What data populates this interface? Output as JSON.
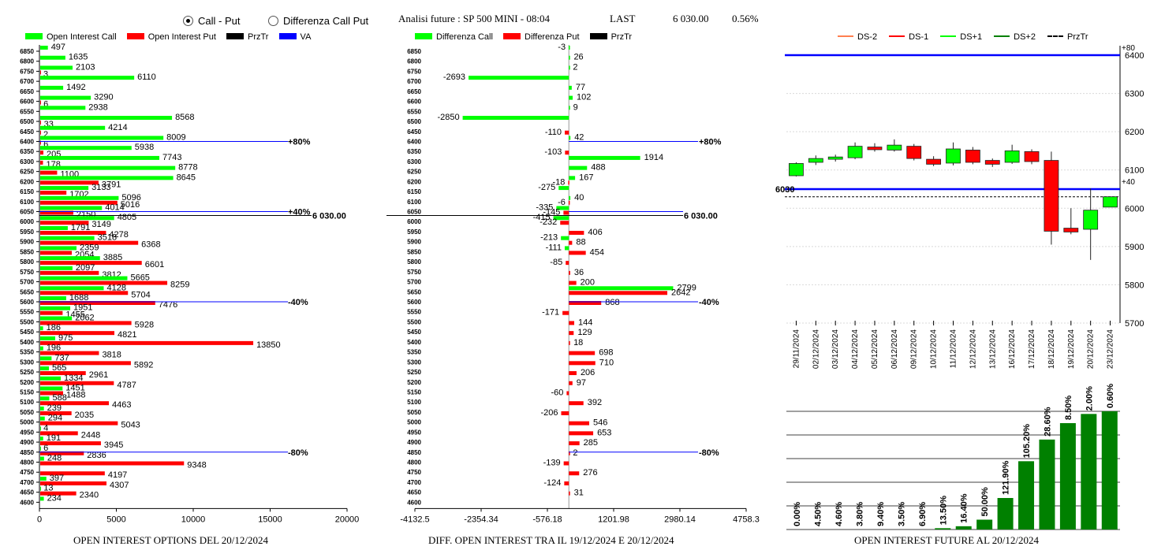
{
  "header": {
    "mode_options": [
      {
        "label": "Call - Put",
        "selected": true
      },
      {
        "label": "Differenza Call Put",
        "selected": false
      }
    ],
    "title": "Analisi future : SP 500 MINI - 08:04",
    "last_label": "LAST",
    "last_value": "6 030.00",
    "change": "0.56%"
  },
  "colors": {
    "call": "#00ff00",
    "put": "#ff0000",
    "price": "#000000",
    "va": "#0000ff",
    "dark_green": "#008000"
  },
  "strikes": [
    6850,
    6800,
    6750,
    6700,
    6650,
    6600,
    6550,
    6500,
    6450,
    6400,
    6350,
    6300,
    6250,
    6200,
    6150,
    6100,
    6050,
    6000,
    5950,
    5900,
    5850,
    5800,
    5750,
    5700,
    5650,
    5600,
    5550,
    5500,
    5450,
    5400,
    5350,
    5300,
    5250,
    5200,
    5150,
    5100,
    5050,
    5000,
    4950,
    4900,
    4850,
    4800,
    4750,
    4700,
    4650,
    4600
  ],
  "chart_data": [
    {
      "type": "bar",
      "title": "OPEN INTEREST OPTIONS DEL 20/12/2024",
      "legend": [
        "Open Interest Call",
        "Open Interest Put",
        "PrzTr",
        "VA"
      ],
      "xticks": [
        "0",
        "5000",
        "10000",
        "15000",
        "20000"
      ],
      "xlim": [
        0,
        20000
      ],
      "price": "6 030.00",
      "levels": [
        {
          "strike": 6400,
          "label": "+80%"
        },
        {
          "strike": 6050,
          "label": "+40%"
        },
        {
          "strike": 5600,
          "label": "-40%"
        },
        {
          "strike": 4850,
          "label": "-80%"
        }
      ],
      "series": [
        {
          "name": "Open Interest Call",
          "values": [
            497,
            1635,
            2103,
            6110,
            1492,
            3290,
            2938,
            8568,
            4214,
            8009,
            5938,
            7743,
            8778,
            8645,
            3133,
            5096,
            4014,
            4805,
            1791,
            3518,
            2359,
            3885,
            2097,
            5665,
            4128,
            1688,
            1951,
            2062,
            186,
            975,
            196,
            737,
            565,
            1334,
            1451,
            588,
            239,
            294,
            4,
            191,
            6,
            248,
            0,
            397,
            13,
            234
          ]
        },
        {
          "name": "Open Interest Put",
          "values": [
            0,
            0,
            3,
            0,
            0,
            6,
            0,
            33,
            2,
            6,
            205,
            178,
            1100,
            3791,
            1702,
            5016,
            2150,
            3149,
            4278,
            6368,
            2054,
            6601,
            3812,
            8259,
            5704,
            7476,
            1455,
            5928,
            4821,
            13850,
            3818,
            5892,
            2961,
            4787,
            1488,
            4463,
            2035,
            5043,
            2448,
            3945,
            2836,
            9348,
            4197,
            4307,
            2340,
            0
          ]
        }
      ]
    },
    {
      "type": "bar",
      "title": "DIFF. OPEN INTEREST TRA IL 19/12/2024 E 20/12/2024",
      "legend": [
        "Differenza Call",
        "Differenza Put",
        "PrzTr"
      ],
      "xticks": [
        "-4132.5",
        "-2354.34",
        "-576.18",
        "1201.98",
        "2980.14",
        "4758.3"
      ],
      "xlim": [
        -4132.5,
        4758.3
      ],
      "price": "6 030.00",
      "levels": [
        {
          "strike": 6400,
          "label": "+80%"
        },
        {
          "strike": 5600,
          "label": "-40%"
        },
        {
          "strike": 4850,
          "label": "-80%"
        }
      ],
      "series": [
        {
          "name": "Differenza Call",
          "values": [
            -3,
            26,
            2,
            -2693,
            77,
            102,
            9,
            -2850,
            0,
            42,
            0,
            1914,
            488,
            167,
            -275,
            40,
            -335,
            -415,
            0,
            -213,
            -111,
            0,
            0,
            0,
            2799,
            0,
            0,
            0,
            0,
            0,
            0,
            0,
            0,
            0,
            0,
            0,
            0,
            0,
            0,
            0,
            0,
            0,
            0,
            0,
            0,
            0
          ]
        },
        {
          "name": "Differenza Put",
          "values": [
            0,
            0,
            0,
            0,
            0,
            0,
            0,
            0,
            -110,
            0,
            -103,
            0,
            0,
            -18,
            0,
            -6,
            -145,
            -232,
            406,
            88,
            454,
            -85,
            36,
            200,
            2642,
            868,
            -171,
            144,
            129,
            18,
            698,
            710,
            206,
            97,
            -60,
            392,
            -206,
            546,
            653,
            285,
            2,
            -139,
            276,
            -124,
            31,
            0
          ]
        }
      ]
    },
    {
      "type": "candlestick",
      "legend": [
        "DS-2",
        "DS-1",
        "DS+1",
        "DS+2",
        "PrzTr"
      ],
      "ylim": [
        5700,
        6400
      ],
      "yticks": [
        "6400",
        "6300",
        "6200",
        "6100",
        "6000",
        "5900",
        "5800",
        "5700"
      ],
      "price_label": "6030",
      "upper_label": "+80",
      "mid_label": "+40",
      "candles": [
        {
          "date": "29/11/2024",
          "open": 6085,
          "close": 6117,
          "high": 6120,
          "low": 6083
        },
        {
          "date": "02/12/2024",
          "open": 6120,
          "close": 6130,
          "high": 6138,
          "low": 6113
        },
        {
          "date": "03/12/2024",
          "open": 6128,
          "close": 6134,
          "high": 6140,
          "low": 6122
        },
        {
          "date": "04/12/2024",
          "open": 6132,
          "close": 6162,
          "high": 6172,
          "low": 6128
        },
        {
          "date": "05/12/2024",
          "open": 6160,
          "close": 6153,
          "high": 6170,
          "low": 6148
        },
        {
          "date": "06/12/2024",
          "open": 6152,
          "close": 6165,
          "high": 6180,
          "low": 6148
        },
        {
          "date": "09/12/2024",
          "open": 6162,
          "close": 6130,
          "high": 6168,
          "low": 6125
        },
        {
          "date": "10/12/2024",
          "open": 6128,
          "close": 6115,
          "high": 6136,
          "low": 6110
        },
        {
          "date": "11/12/2024",
          "open": 6118,
          "close": 6155,
          "high": 6172,
          "low": 6112
        },
        {
          "date": "12/12/2024",
          "open": 6152,
          "close": 6120,
          "high": 6160,
          "low": 6115
        },
        {
          "date": "13/12/2024",
          "open": 6125,
          "close": 6115,
          "high": 6130,
          "low": 6108
        },
        {
          "date": "16/12/2024",
          "open": 6120,
          "close": 6150,
          "high": 6166,
          "low": 6116
        },
        {
          "date": "17/12/2024",
          "open": 6148,
          "close": 6122,
          "high": 6154,
          "low": 6115
        },
        {
          "date": "18/12/2024",
          "open": 6125,
          "close": 5940,
          "high": 6148,
          "low": 5905
        },
        {
          "date": "19/12/2024",
          "open": 5948,
          "close": 5938,
          "high": 6000,
          "low": 5932
        },
        {
          "date": "20/12/2024",
          "open": 5945,
          "close": 5995,
          "high": 6052,
          "low": 5865
        },
        {
          "date": "23/12/2024",
          "open": 6003,
          "close": 6030,
          "high": 6030,
          "low": 6003
        }
      ]
    },
    {
      "type": "bar",
      "title": "OPEN INTEREST FUTURE AL 20/12/2024",
      "labels": [
        "0.00%",
        "4.50%",
        "4.60%",
        "3.80%",
        "9.40%",
        "3.50%",
        "6.90%",
        "13.50%",
        "16.40%",
        "50.00%",
        "121.90%",
        "105.20%",
        "28.60%",
        "8.50%",
        "2.00%",
        "0.60%"
      ],
      "values": [
        0,
        0,
        0,
        0,
        0,
        0,
        0,
        2,
        5,
        15,
        48,
        104,
        137,
        162,
        176,
        180
      ]
    }
  ]
}
